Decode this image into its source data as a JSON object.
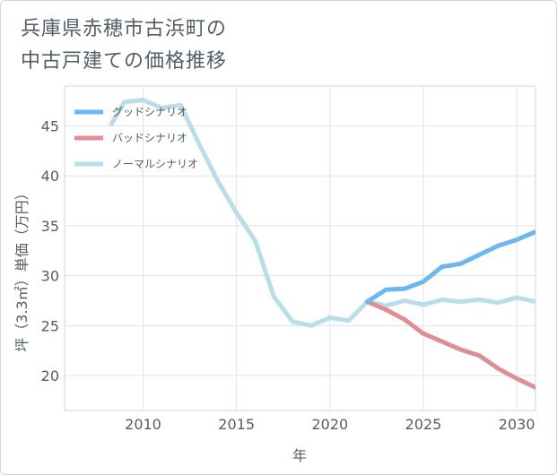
{
  "title": {
    "line1": "兵庫県赤穂市古浜町の",
    "line2": "中古戸建ての価格推移"
  },
  "chart_data": {
    "type": "line",
    "xlabel": "年",
    "ylabel": "坪（3.3㎡）単価（万円）",
    "xlim": [
      2005.8,
      2031
    ],
    "ylim": [
      16.5,
      49
    ],
    "xticks": [
      2010,
      2015,
      2020,
      2025,
      2030
    ],
    "yticks": [
      20,
      25,
      30,
      35,
      40,
      45
    ],
    "legend_position": "top-left",
    "series": [
      {
        "name": "グッドシナリオ",
        "color": "#6cb8ee",
        "x": [
          2022,
          2023,
          2024,
          2025,
          2026,
          2027,
          2028,
          2029,
          2030,
          2031
        ],
        "values": [
          27.4,
          28.6,
          28.7,
          29.4,
          30.9,
          31.2,
          32.1,
          33.0,
          33.6,
          34.4
        ]
      },
      {
        "name": "バッドシナリオ",
        "color": "#de8f96",
        "x": [
          2022,
          2023,
          2024,
          2025,
          2026,
          2027,
          2028,
          2029,
          2030,
          2031
        ],
        "values": [
          27.4,
          26.6,
          25.6,
          24.2,
          23.4,
          22.6,
          22.0,
          20.7,
          19.7,
          18.8
        ]
      },
      {
        "name": "ノーマルシナリオ",
        "color": "#badde9",
        "x": [
          2008.3,
          2009,
          2010,
          2011,
          2012,
          2013,
          2014,
          2015,
          2016,
          2017,
          2018,
          2019,
          2020,
          2021,
          2022,
          2023,
          2024,
          2025,
          2026,
          2027,
          2028,
          2029,
          2030,
          2031
        ],
        "values": [
          45.2,
          47.4,
          47.6,
          46.8,
          47.1,
          43.2,
          39.5,
          36.3,
          33.5,
          27.9,
          25.4,
          25.0,
          25.8,
          25.5,
          27.4,
          27.0,
          27.5,
          27.1,
          27.6,
          27.4,
          27.6,
          27.3,
          27.8,
          27.4
        ]
      }
    ]
  }
}
